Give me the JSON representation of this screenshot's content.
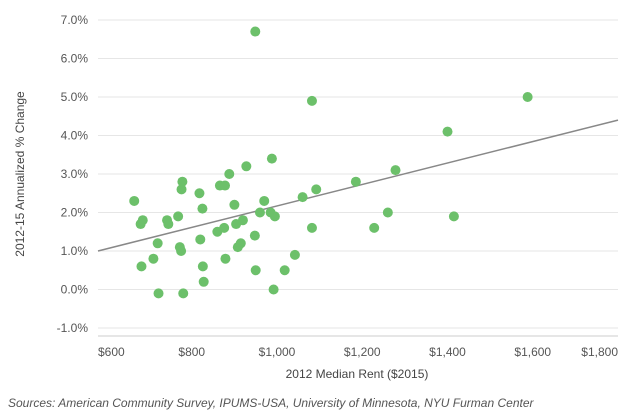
{
  "chart_data": {
    "type": "scatter",
    "title": "",
    "xlabel": "2012 Median Rent ($2015)",
    "ylabel": "2012-15 Annualized % Change",
    "xlim": [
      580,
      1800
    ],
    "ylim": [
      -1.0,
      7.0
    ],
    "x_ticks": [
      600,
      800,
      1000,
      1200,
      1400,
      1600,
      1800
    ],
    "x_tick_labels": [
      "$600",
      "$800",
      "$1,000",
      "$1,200",
      "$1,400",
      "$1,600",
      "$1,800"
    ],
    "y_ticks": [
      -1,
      0,
      1,
      2,
      3,
      4,
      5,
      6,
      7
    ],
    "y_tick_labels": [
      "-1.0%",
      "0.0%",
      "1.0%",
      "2.0%",
      "3.0%",
      "4.0%",
      "5.0%",
      "6.0%",
      "7.0%"
    ],
    "grid": "horizontal",
    "point_color": "#6cc06a",
    "trend_color": "#888888",
    "trendline": {
      "x": [
        580,
        1800
      ],
      "y": [
        1.0,
        4.4
      ]
    },
    "points": [
      {
        "x": 665,
        "y": 2.3
      },
      {
        "x": 680,
        "y": 1.7
      },
      {
        "x": 685,
        "y": 1.8
      },
      {
        "x": 682,
        "y": 0.6
      },
      {
        "x": 710,
        "y": 0.8
      },
      {
        "x": 720,
        "y": 1.2
      },
      {
        "x": 722,
        "y": -0.1
      },
      {
        "x": 742,
        "y": 1.8
      },
      {
        "x": 745,
        "y": 1.7
      },
      {
        "x": 768,
        "y": 1.9
      },
      {
        "x": 772,
        "y": 1.1
      },
      {
        "x": 775,
        "y": 1.0
      },
      {
        "x": 776,
        "y": 2.6
      },
      {
        "x": 778,
        "y": 2.8
      },
      {
        "x": 780,
        "y": -0.1
      },
      {
        "x": 818,
        "y": 2.5
      },
      {
        "x": 820,
        "y": 1.3
      },
      {
        "x": 825,
        "y": 2.1
      },
      {
        "x": 826,
        "y": 0.6
      },
      {
        "x": 828,
        "y": 0.2
      },
      {
        "x": 860,
        "y": 1.5
      },
      {
        "x": 866,
        "y": 2.7
      },
      {
        "x": 876,
        "y": 1.6
      },
      {
        "x": 878,
        "y": 2.7
      },
      {
        "x": 879,
        "y": 0.8
      },
      {
        "x": 888,
        "y": 3.0
      },
      {
        "x": 900,
        "y": 2.2
      },
      {
        "x": 904,
        "y": 1.7
      },
      {
        "x": 908,
        "y": 1.1
      },
      {
        "x": 915,
        "y": 1.2
      },
      {
        "x": 920,
        "y": 1.8
      },
      {
        "x": 928,
        "y": 3.2
      },
      {
        "x": 948,
        "y": 1.4
      },
      {
        "x": 949,
        "y": 6.7
      },
      {
        "x": 950,
        "y": 0.5
      },
      {
        "x": 960,
        "y": 2.0
      },
      {
        "x": 970,
        "y": 2.3
      },
      {
        "x": 985,
        "y": 2.0
      },
      {
        "x": 988,
        "y": 3.4
      },
      {
        "x": 992,
        "y": 0.0
      },
      {
        "x": 995,
        "y": 1.9
      },
      {
        "x": 1018,
        "y": 0.5
      },
      {
        "x": 1042,
        "y": 0.9
      },
      {
        "x": 1060,
        "y": 2.4
      },
      {
        "x": 1082,
        "y": 1.6
      },
      {
        "x": 1082,
        "y": 4.9
      },
      {
        "x": 1092,
        "y": 2.6
      },
      {
        "x": 1185,
        "y": 2.8
      },
      {
        "x": 1228,
        "y": 1.6
      },
      {
        "x": 1260,
        "y": 2.0
      },
      {
        "x": 1278,
        "y": 3.1
      },
      {
        "x": 1400,
        "y": 4.1
      },
      {
        "x": 1415,
        "y": 1.9
      },
      {
        "x": 1588,
        "y": 5.0
      }
    ]
  },
  "source_text": "Sources: American Community Survey, IPUMS-USA, University of Minnesota, NYU Furman Center"
}
